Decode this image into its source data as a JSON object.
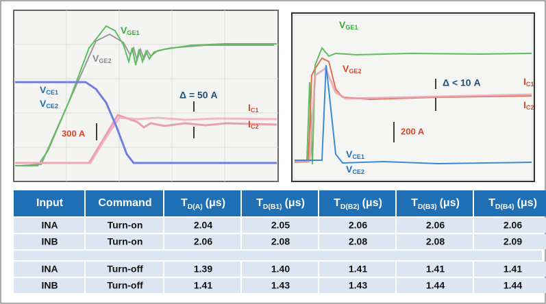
{
  "left_scope": {
    "labels": [
      {
        "text": "V",
        "sub": "GE1"
      },
      {
        "text": "V",
        "sub": "GE2"
      },
      {
        "text": "V",
        "sub": "CE1"
      },
      {
        "text": "V",
        "sub": "CE2"
      },
      {
        "text": "I",
        "sub": "C1"
      },
      {
        "text": "I",
        "sub": "C2"
      }
    ],
    "annotations": [
      "Δ = 50 A",
      "300 A"
    ]
  },
  "right_scope": {
    "labels": [
      {
        "text": "V",
        "sub": "GE1"
      },
      {
        "text": "V",
        "sub": "GE2"
      },
      {
        "text": "I",
        "sub": "C1"
      },
      {
        "text": "I",
        "sub": "C2"
      },
      {
        "text": "V",
        "sub": "CE1"
      },
      {
        "text": "V",
        "sub": "CE2"
      }
    ],
    "annotations": [
      "Δ < 10 A",
      "200 A"
    ]
  },
  "table": {
    "header": [
      {
        "text": "Input"
      },
      {
        "text": "Command"
      },
      {
        "text": "T",
        "sub": "D(A)",
        "unit": "(μs)"
      },
      {
        "text": "T",
        "sub": "D(B1)",
        "unit": "(μs)"
      },
      {
        "text": "T",
        "sub": "D(B2)",
        "unit": "(μs)"
      },
      {
        "text": "T",
        "sub": "D(B3)",
        "unit": "(μs)"
      },
      {
        "text": "T",
        "sub": "D(B4)",
        "unit": "(μs)"
      }
    ],
    "rows": [
      [
        "INA",
        "Turn-on",
        "2.04",
        "2.05",
        "2.06",
        "2.06",
        "2.06"
      ],
      [
        "INB",
        "Turn-on",
        "2.06",
        "2.08",
        "2.08",
        "2.08",
        "2.09"
      ],
      [
        "INA",
        "Turn-off",
        "1.39",
        "1.40",
        "1.41",
        "1.41",
        "1.41"
      ],
      [
        "INB",
        "Turn-off",
        "1.41",
        "1.43",
        "1.43",
        "1.44",
        "1.44"
      ]
    ]
  }
}
